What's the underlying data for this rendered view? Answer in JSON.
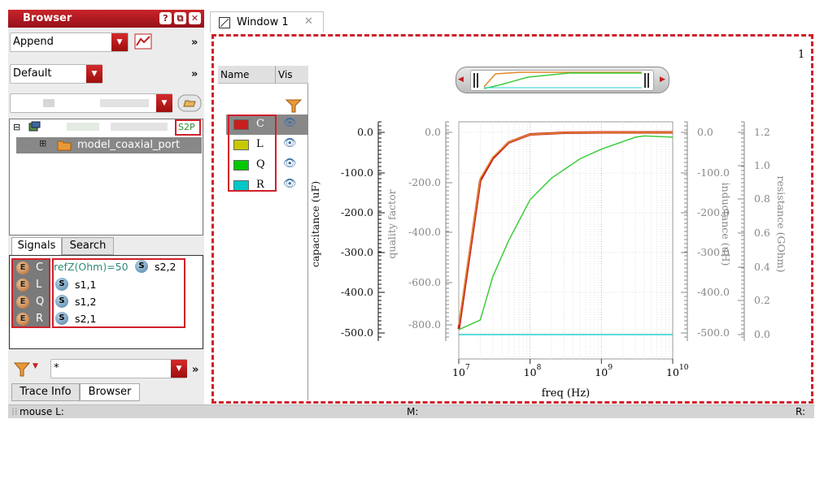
{
  "browser": {
    "title": "Browser",
    "mode": "Append",
    "view": "Default",
    "tree": {
      "file_tag": "S2P",
      "folder": "model_coaxial_port"
    },
    "tabs": [
      "Signals",
      "Search"
    ],
    "expr_signals": [
      "C",
      "L",
      "Q",
      "R"
    ],
    "signals": [
      {
        "label": "refZ(Ohm)=50"
      },
      {
        "label": "s2,2"
      },
      {
        "label": "s1,1"
      },
      {
        "label": "s1,2"
      },
      {
        "label": "s2,1"
      }
    ],
    "filter_value": "*",
    "bottom_tabs": [
      "Trace Info",
      "Browser"
    ]
  },
  "window": {
    "tab_label": "Window 1",
    "page_number": "1"
  },
  "legend": {
    "headers": {
      "name": "Name",
      "vis": "Vis"
    },
    "items": [
      {
        "name": "C",
        "color": "#c81e1e"
      },
      {
        "name": "L",
        "color": "#c8c800"
      },
      {
        "name": "Q",
        "color": "#00c800"
      },
      {
        "name": "R",
        "color": "#00c8c8"
      }
    ]
  },
  "status": {
    "left": "mouse L:",
    "mid": "M:",
    "right": "R:"
  },
  "chart_data": {
    "type": "line",
    "xlabel": "freq (Hz)",
    "xscale": "log",
    "xlim": [
      10000000,
      10000000000
    ],
    "x_ticks": [
      "10",
      "10",
      "10",
      "10"
    ],
    "x_tick_exponents": [
      "7",
      "8",
      "9",
      "10"
    ],
    "axes": [
      {
        "label": "capacitance (uF)",
        "ticks": [
          "0.0",
          "-100.0",
          "-200.0",
          "-300.0",
          "-400.0",
          "-500.0"
        ],
        "ylim": [
          -500,
          0
        ]
      },
      {
        "label": "quality factor",
        "ticks": [
          "0.0",
          "-200.0",
          "-400.0",
          "-600.0",
          "-800.0"
        ],
        "ylim": [
          -850,
          0
        ]
      },
      {
        "label": "inductance (uH)",
        "ticks": [
          "0.0",
          "-100.0",
          "-200.0",
          "-300.0",
          "-400.0",
          "-500.0"
        ],
        "ylim": [
          -500,
          0
        ]
      },
      {
        "label": "resistance (GOhm)",
        "ticks": [
          "1.2",
          "1.0",
          "0.8",
          "0.6",
          "0.4",
          "0.2",
          "0.0"
        ],
        "ylim": [
          0,
          1.2
        ]
      }
    ],
    "series": [
      {
        "name": "C",
        "color": "#c81e1e",
        "x": [
          10000000,
          20000000,
          30000000,
          50000000,
          100000000,
          300000000,
          1000000000,
          10000000000
        ],
        "y": [
          -490,
          -120,
          -65,
          -25,
          -5,
          -1,
          0,
          0
        ]
      },
      {
        "name": "L",
        "color": "#e08a2a",
        "x": [
          10000000,
          20000000,
          30000000,
          50000000,
          100000000,
          300000000,
          1000000000,
          10000000000
        ],
        "y": [
          -480,
          -115,
          -62,
          -24,
          -5,
          -1,
          0,
          0
        ]
      },
      {
        "name": "Q",
        "color": "#3ccc3c",
        "x": [
          10000000,
          20000000,
          30000000,
          50000000,
          100000000,
          200000000,
          500000000,
          1000000000,
          3000000000,
          4000000000,
          10000000000
        ],
        "y": [
          -820,
          -780,
          -600,
          -450,
          -280,
          -190,
          -110,
          -70,
          -20,
          -15,
          -20
        ]
      },
      {
        "name": "R",
        "color": "#22d0d0",
        "x": [
          10000000,
          10000000000
        ],
        "y": [
          0,
          0
        ]
      }
    ]
  }
}
